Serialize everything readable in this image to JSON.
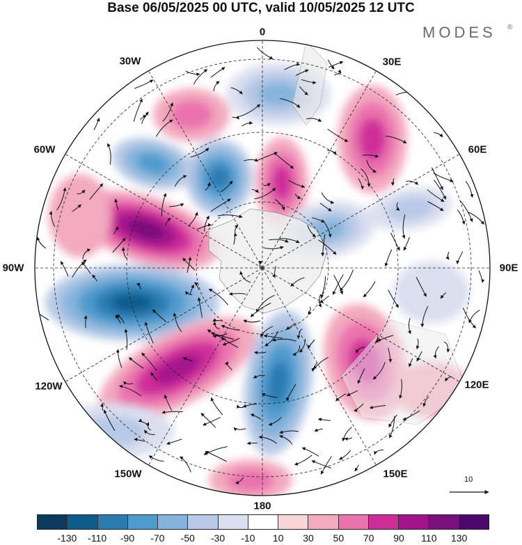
{
  "header": {
    "title": "Base 06/05/2025 00 UTC, valid 10/05/2025 12 UTC",
    "brand": "MODES",
    "brand_mark": "®"
  },
  "map": {
    "projection": "south polar stereographic",
    "longitude_labels": [
      "0",
      "30E",
      "60E",
      "90E",
      "120E",
      "150E",
      "180",
      "150W",
      "120W",
      "90W",
      "60W",
      "30W"
    ],
    "field": "anomaly with wind streamlines",
    "reference_vector": {
      "label": "10",
      "value": 10
    }
  },
  "colorbar": {
    "tick_labels": [
      "-130",
      "-110",
      "-90",
      "-70",
      "-50",
      "-30",
      "-10",
      "10",
      "30",
      "50",
      "70",
      "90",
      "110",
      "130"
    ],
    "colors": [
      "#0b3a5c",
      "#0f5c8c",
      "#2a7cb3",
      "#4f9acd",
      "#86b4dc",
      "#b7c9e6",
      "#dcdff0",
      "#ffffff",
      "#f8d6d8",
      "#f3a9bf",
      "#ea73ae",
      "#cf2e9a",
      "#a4128c",
      "#78117c",
      "#4b0a6b"
    ]
  }
}
